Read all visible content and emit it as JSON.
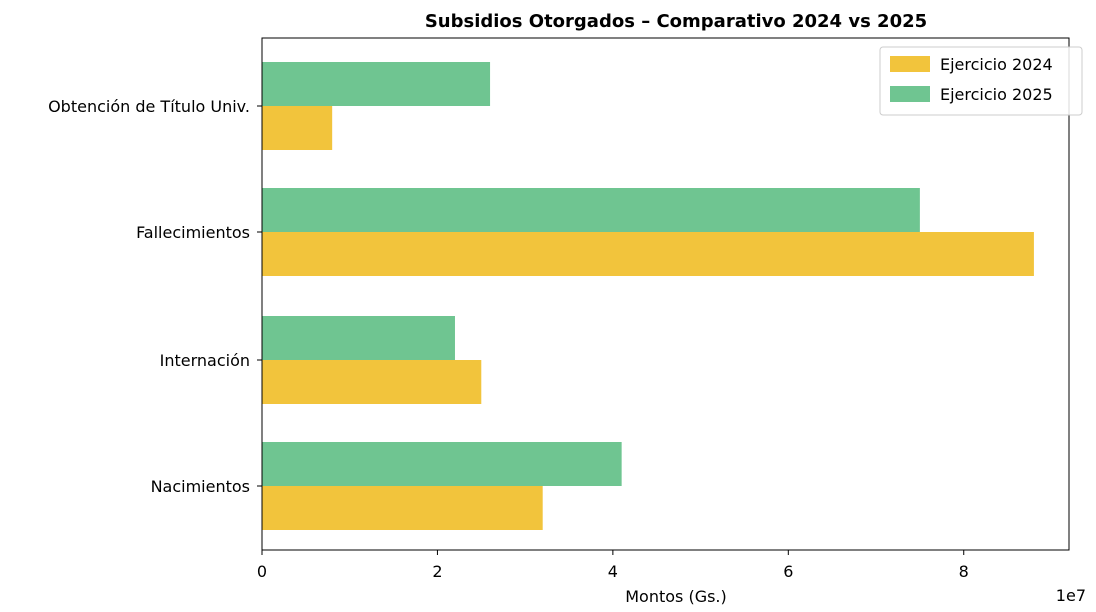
{
  "chart_data": {
    "type": "bar",
    "orientation": "horizontal",
    "title": "Subsidios Otorgados – Comparativo 2024 vs 2025",
    "xlabel": "Montos (Gs.)",
    "ylabel": "",
    "x_offset_label": "1e7",
    "xlim": [
      0,
      9.2
    ],
    "x_ticks": [
      0,
      2,
      4,
      6,
      8
    ],
    "x_tick_labels": [
      "0",
      "2",
      "4",
      "6",
      "8"
    ],
    "grid": false,
    "legend_position": "top-right",
    "categories": [
      "Nacimientos",
      "Internación",
      "Fallecimientos",
      "Obtención de Título Univ."
    ],
    "series": [
      {
        "name": "Ejercicio 2024",
        "color": "#f2c43c",
        "values": [
          3.2,
          2.5,
          8.8,
          0.8
        ]
      },
      {
        "name": "Ejercicio 2025",
        "color": "#6fc591",
        "values": [
          4.1,
          2.2,
          7.5,
          2.6
        ]
      }
    ]
  }
}
